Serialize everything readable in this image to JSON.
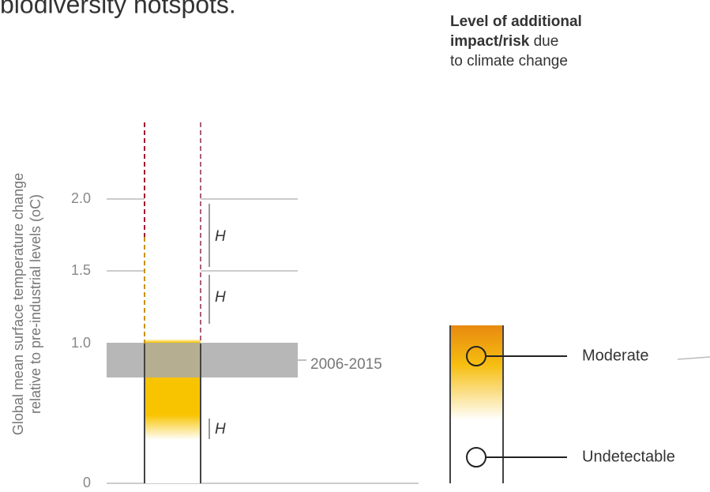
{
  "header": {
    "title": "biodiversity hotspots."
  },
  "legend": {
    "title_bold_1": "Level of additional",
    "title_bold_2": "impact/risk",
    "title_normal_2": "due",
    "title_normal_3": "to climate change",
    "levels": [
      "Moderate",
      "Undetectable"
    ]
  },
  "axis": {
    "label_line_1": "Global mean surface temperature change",
    "label_line_2": "relative to pre-industrial levels (oC)",
    "ticks": [
      "2.0",
      "1.5",
      "1.0",
      "0"
    ]
  },
  "band": {
    "label": "2006-2015"
  },
  "confidence": [
    "H",
    "H",
    "H"
  ]
}
